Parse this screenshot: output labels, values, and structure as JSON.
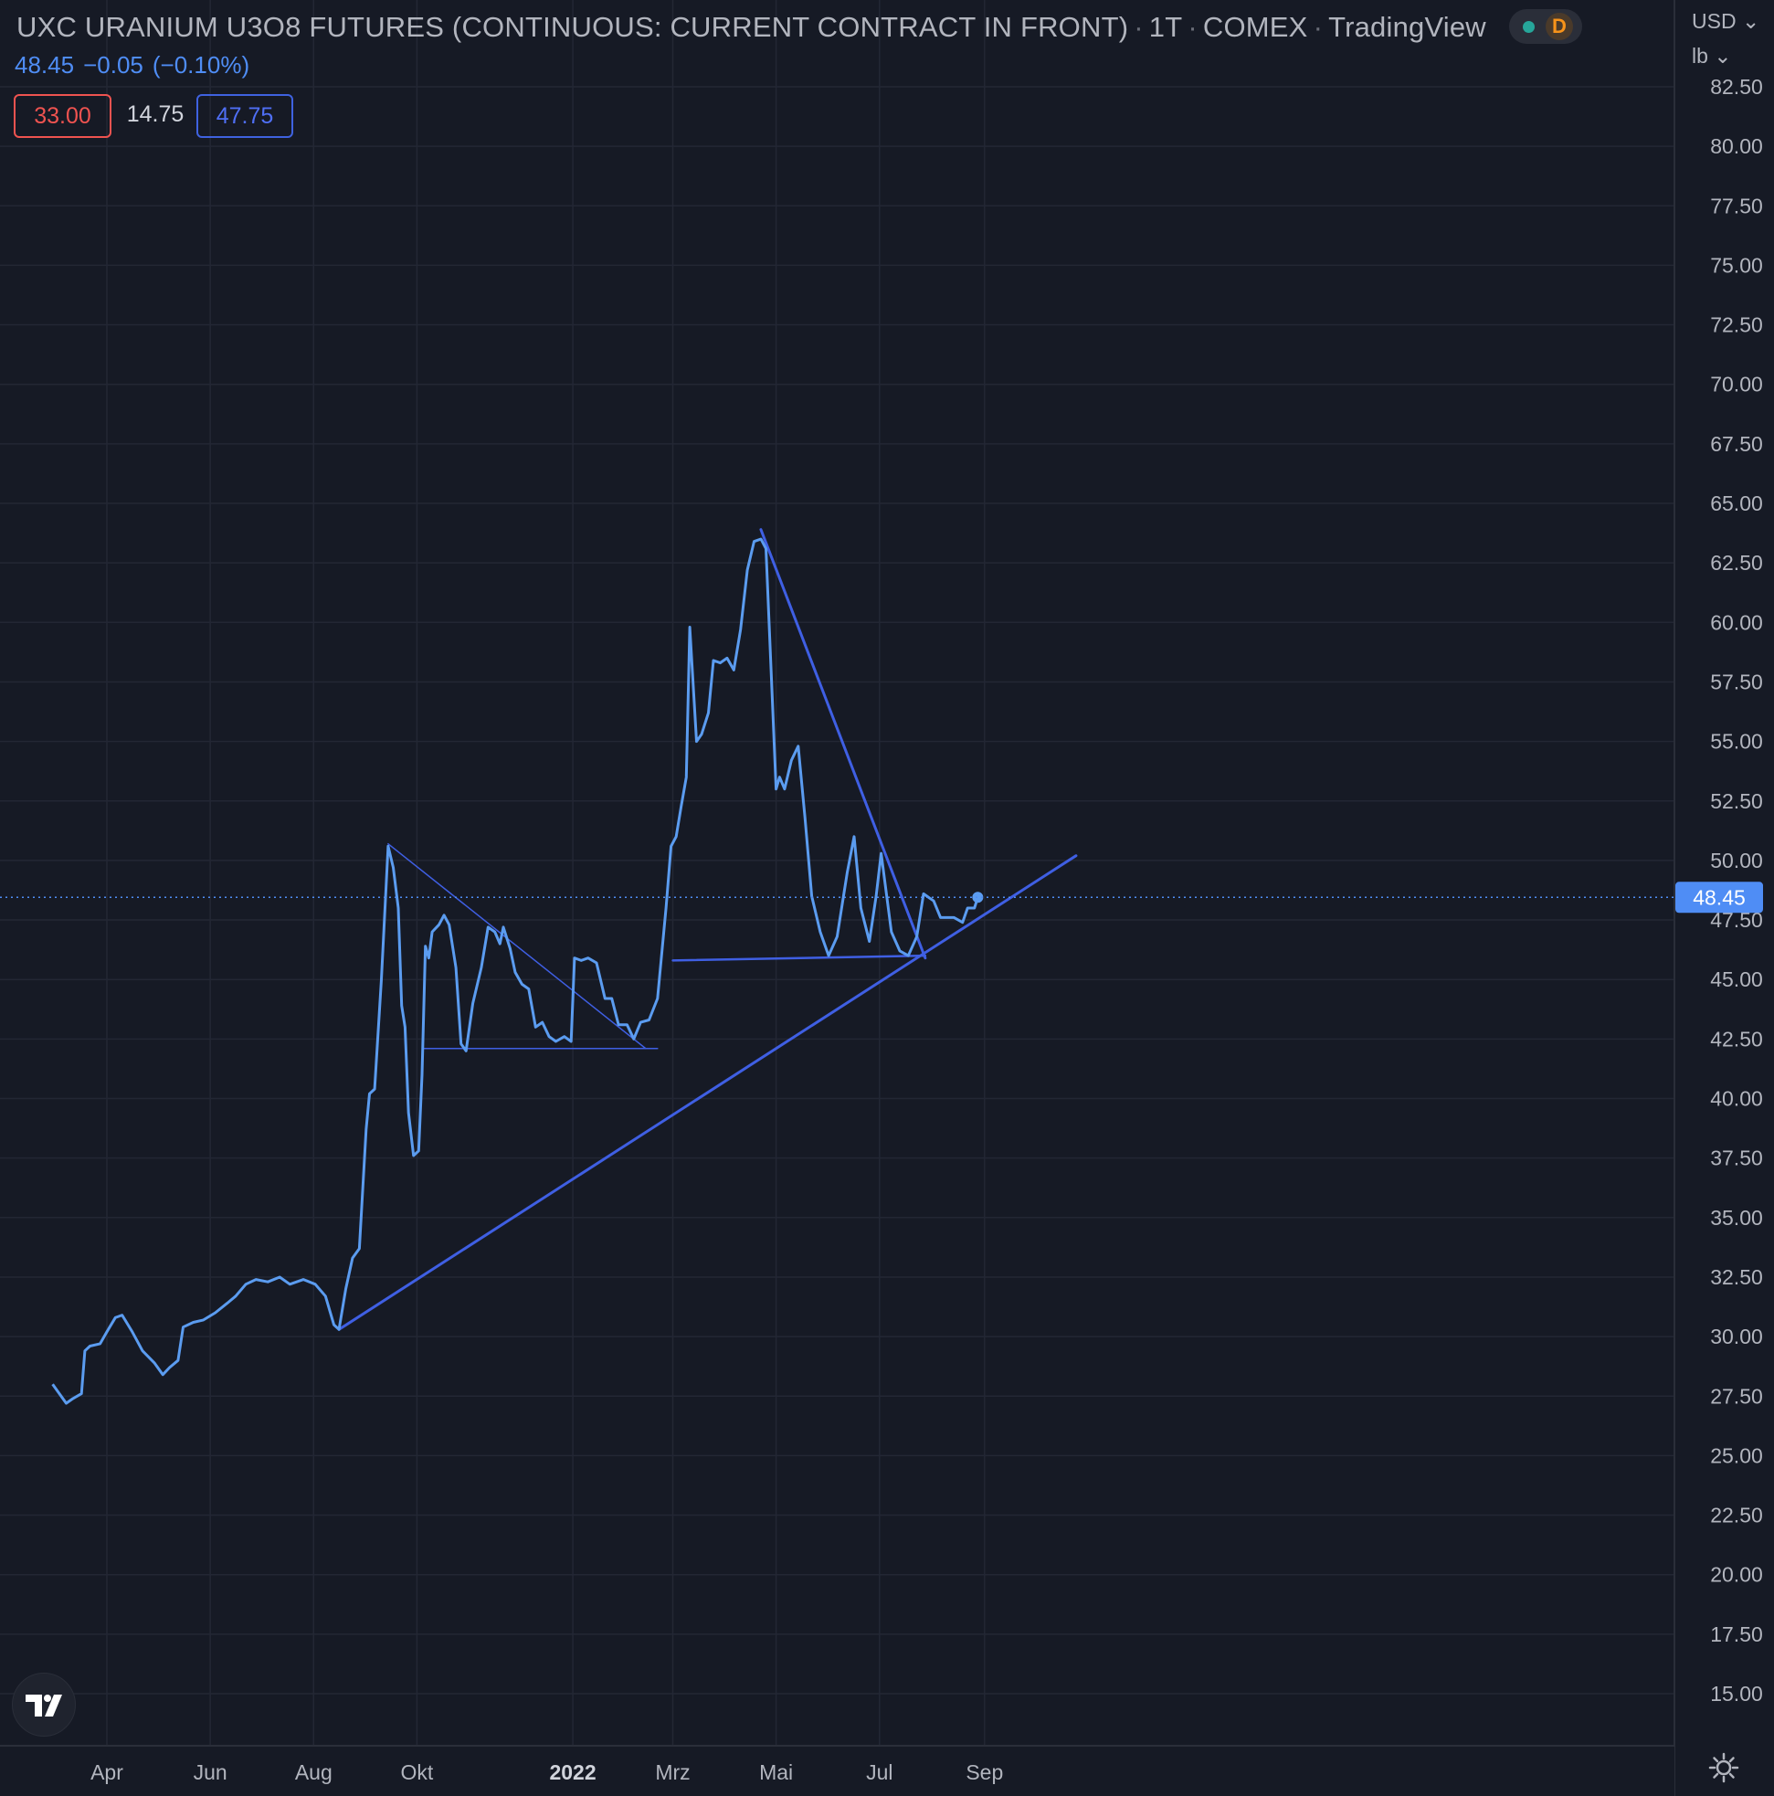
{
  "header": {
    "symbol": "UXC URANIUM U3O8 FUTURES (CONTINUOUS: CURRENT CONTRACT IN FRONT)",
    "interval": "1T",
    "exchange": "COMEX",
    "source": "TradingView",
    "status_badge": "D"
  },
  "quote": {
    "last": "48.45",
    "change": "−0.05",
    "change_pct": "(−0.10%)"
  },
  "measure": {
    "low_box": "33.00",
    "diff": "14.75",
    "high_box": "47.75"
  },
  "axis": {
    "currency": "USD",
    "unit": "lb"
  },
  "colors": {
    "background": "#161a25",
    "grid": "#232734",
    "price_line": "#5b9cf0",
    "trend_line": "#3f5fe3",
    "last_price_tag": "#4f8df5",
    "axis_text": "#b2b5be"
  },
  "icons": {
    "logo": "tradingview-logo-icon",
    "settings": "gear-icon",
    "live_status": "status-dot-icon"
  },
  "chart_data": {
    "type": "line",
    "title": "UXC URANIUM U3O8 FUTURES (CONTINUOUS: CURRENT CONTRACT IN FRONT)",
    "ylim": [
      13.5,
      84
    ],
    "y_ticks": [
      "15.00",
      "17.50",
      "20.00",
      "22.50",
      "25.00",
      "27.50",
      "30.00",
      "32.50",
      "35.00",
      "37.50",
      "40.00",
      "42.50",
      "45.00",
      "47.50",
      "50.00",
      "52.50",
      "55.00",
      "57.50",
      "60.00",
      "62.50",
      "65.00",
      "67.50",
      "70.00",
      "72.50",
      "75.00",
      "77.50",
      "80.00",
      "82.50"
    ],
    "x_ticks": [
      {
        "label": "Apr",
        "date": "2021-04-01",
        "bold": false
      },
      {
        "label": "Jun",
        "date": "2021-06-01",
        "bold": false
      },
      {
        "label": "Aug",
        "date": "2021-08-01",
        "bold": false
      },
      {
        "label": "Okt",
        "date": "2021-10-01",
        "bold": false
      },
      {
        "label": "2022",
        "date": "2022-01-01",
        "bold": true
      },
      {
        "label": "Mrz",
        "date": "2022-03-01",
        "bold": false
      },
      {
        "label": "Mai",
        "date": "2022-05-01",
        "bold": false
      },
      {
        "label": "Jul",
        "date": "2022-07-01",
        "bold": false
      },
      {
        "label": "Sep",
        "date": "2022-09-01",
        "bold": false
      }
    ],
    "last_value": 48.45,
    "series": [
      {
        "points": [
          [
            "2021-02-28",
            28.0
          ],
          [
            "2021-03-05",
            27.5
          ],
          [
            "2021-03-08",
            27.2
          ],
          [
            "2021-03-12",
            27.4
          ],
          [
            "2021-03-17",
            27.6
          ],
          [
            "2021-03-19",
            29.4
          ],
          [
            "2021-03-22",
            29.6
          ],
          [
            "2021-03-28",
            29.7
          ],
          [
            "2021-04-01",
            30.2
          ],
          [
            "2021-04-06",
            30.8
          ],
          [
            "2021-04-10",
            30.9
          ],
          [
            "2021-04-16",
            30.2
          ],
          [
            "2021-04-22",
            29.4
          ],
          [
            "2021-04-29",
            28.9
          ],
          [
            "2021-05-04",
            28.4
          ],
          [
            "2021-05-08",
            28.7
          ],
          [
            "2021-05-13",
            29.0
          ],
          [
            "2021-05-16",
            30.4
          ],
          [
            "2021-05-22",
            30.6
          ],
          [
            "2021-05-28",
            30.7
          ],
          [
            "2021-06-04",
            31.0
          ],
          [
            "2021-06-11",
            31.4
          ],
          [
            "2021-06-16",
            31.7
          ],
          [
            "2021-06-22",
            32.2
          ],
          [
            "2021-06-28",
            32.4
          ],
          [
            "2021-07-05",
            32.3
          ],
          [
            "2021-07-12",
            32.5
          ],
          [
            "2021-07-18",
            32.2
          ],
          [
            "2021-07-26",
            32.4
          ],
          [
            "2021-08-02",
            32.2
          ],
          [
            "2021-08-08",
            31.7
          ],
          [
            "2021-08-13",
            30.5
          ],
          [
            "2021-08-16",
            30.3
          ],
          [
            "2021-08-20",
            32.0
          ],
          [
            "2021-08-24",
            33.3
          ],
          [
            "2021-08-28",
            33.7
          ],
          [
            "2021-09-01",
            38.7
          ],
          [
            "2021-09-03",
            40.2
          ],
          [
            "2021-09-06",
            40.4
          ],
          [
            "2021-09-10",
            45.0
          ],
          [
            "2021-09-14",
            50.6
          ],
          [
            "2021-09-17",
            49.7
          ],
          [
            "2021-09-20",
            48.0
          ],
          [
            "2021-09-22",
            43.9
          ],
          [
            "2021-09-24",
            43.0
          ],
          [
            "2021-09-26",
            39.4
          ],
          [
            "2021-09-29",
            37.6
          ],
          [
            "2021-10-02",
            37.8
          ],
          [
            "2021-10-04",
            41.0
          ],
          [
            "2021-10-06",
            46.4
          ],
          [
            "2021-10-08",
            45.9
          ],
          [
            "2021-10-10",
            47.0
          ],
          [
            "2021-10-14",
            47.3
          ],
          [
            "2021-10-17",
            47.7
          ],
          [
            "2021-10-20",
            47.3
          ],
          [
            "2021-10-24",
            45.5
          ],
          [
            "2021-10-27",
            42.3
          ],
          [
            "2021-10-30",
            42.0
          ],
          [
            "2021-11-03",
            44.0
          ],
          [
            "2021-11-08",
            45.5
          ],
          [
            "2021-11-12",
            47.2
          ],
          [
            "2021-11-16",
            47.0
          ],
          [
            "2021-11-19",
            46.5
          ],
          [
            "2021-11-21",
            47.2
          ],
          [
            "2021-11-25",
            46.3
          ],
          [
            "2021-11-28",
            45.3
          ],
          [
            "2021-12-02",
            44.8
          ],
          [
            "2021-12-06",
            44.6
          ],
          [
            "2021-12-10",
            43.0
          ],
          [
            "2021-12-14",
            43.2
          ],
          [
            "2021-12-18",
            42.6
          ],
          [
            "2021-12-22",
            42.4
          ],
          [
            "2021-12-27",
            42.6
          ],
          [
            "2021-12-31",
            42.4
          ],
          [
            "2022-01-02",
            45.9
          ],
          [
            "2022-01-06",
            45.8
          ],
          [
            "2022-01-10",
            45.9
          ],
          [
            "2022-01-15",
            45.7
          ],
          [
            "2022-01-20",
            44.2
          ],
          [
            "2022-01-24",
            44.2
          ],
          [
            "2022-01-28",
            43.1
          ],
          [
            "2022-02-02",
            43.1
          ],
          [
            "2022-02-06",
            42.5
          ],
          [
            "2022-02-10",
            43.2
          ],
          [
            "2022-02-15",
            43.3
          ],
          [
            "2022-02-20",
            44.2
          ],
          [
            "2022-02-25",
            48.0
          ],
          [
            "2022-02-28",
            50.6
          ],
          [
            "2022-03-03",
            51.0
          ],
          [
            "2022-03-06",
            52.3
          ],
          [
            "2022-03-09",
            53.5
          ],
          [
            "2022-03-11",
            59.8
          ],
          [
            "2022-03-15",
            55.0
          ],
          [
            "2022-03-18",
            55.3
          ],
          [
            "2022-03-22",
            56.2
          ],
          [
            "2022-03-25",
            58.4
          ],
          [
            "2022-03-29",
            58.3
          ],
          [
            "2022-04-02",
            58.5
          ],
          [
            "2022-04-06",
            58.0
          ],
          [
            "2022-04-10",
            59.7
          ],
          [
            "2022-04-14",
            62.2
          ],
          [
            "2022-04-18",
            63.4
          ],
          [
            "2022-04-22",
            63.5
          ],
          [
            "2022-04-25",
            63.1
          ],
          [
            "2022-04-28",
            58.0
          ],
          [
            "2022-05-01",
            53.0
          ],
          [
            "2022-05-03",
            53.5
          ],
          [
            "2022-05-06",
            53.0
          ],
          [
            "2022-05-10",
            54.2
          ],
          [
            "2022-05-14",
            54.8
          ],
          [
            "2022-05-18",
            51.8
          ],
          [
            "2022-05-22",
            48.5
          ],
          [
            "2022-05-27",
            47.0
          ],
          [
            "2022-06-01",
            46.0
          ],
          [
            "2022-06-06",
            46.8
          ],
          [
            "2022-06-12",
            49.5
          ],
          [
            "2022-06-16",
            51.0
          ],
          [
            "2022-06-20",
            48.0
          ],
          [
            "2022-06-25",
            46.6
          ],
          [
            "2022-06-29",
            48.5
          ],
          [
            "2022-07-02",
            50.3
          ],
          [
            "2022-07-08",
            47.0
          ],
          [
            "2022-07-13",
            46.2
          ],
          [
            "2022-07-18",
            46.0
          ],
          [
            "2022-07-23",
            46.8
          ],
          [
            "2022-07-27",
            48.6
          ],
          [
            "2022-08-02",
            48.3
          ],
          [
            "2022-08-06",
            47.6
          ],
          [
            "2022-08-14",
            47.6
          ],
          [
            "2022-08-19",
            47.4
          ],
          [
            "2022-08-22",
            48.0
          ],
          [
            "2022-08-26",
            48.0
          ],
          [
            "2022-08-28",
            48.45
          ]
        ]
      }
    ],
    "drawings": [
      {
        "type": "trendline",
        "width": 3,
        "from": [
          "2021-08-16",
          30.3
        ],
        "to": [
          "2022-10-25",
          50.2
        ]
      },
      {
        "type": "trendline",
        "width": 1.5,
        "from": [
          "2021-09-14",
          50.7
        ],
        "to": [
          "2022-02-13",
          42.1
        ]
      },
      {
        "type": "hline",
        "width": 1.5,
        "from": [
          "2021-10-05",
          42.1
        ],
        "to": [
          "2022-02-20",
          42.1
        ]
      },
      {
        "type": "trendline",
        "width": 3,
        "from": [
          "2022-04-22",
          63.9
        ],
        "to": [
          "2022-07-28",
          45.9
        ]
      },
      {
        "type": "hline",
        "width": 2.5,
        "from": [
          "2022-03-01",
          45.8
        ],
        "to": [
          "2022-07-28",
          46.0
        ]
      }
    ]
  }
}
